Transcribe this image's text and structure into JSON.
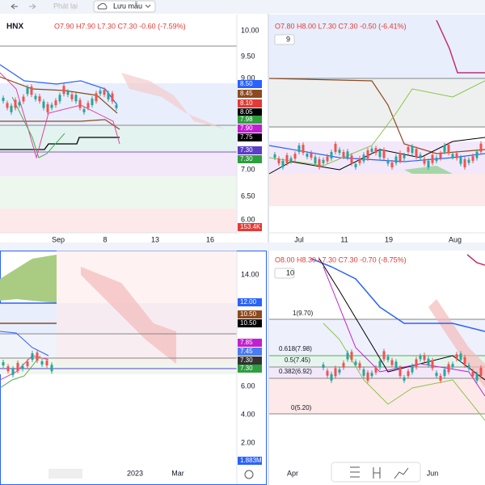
{
  "toolbar": {
    "save_label": "Lưu mẫu",
    "replay_label": "Phát lại"
  },
  "panes": [
    {
      "symbol": "HNX",
      "ohlc": "O7.90 H7.90 L7.30 C7.30 -0.60 (-7.59%)",
      "price_labels": [
        "10.00",
        "9.50",
        "9.00",
        "7.00",
        "6.50",
        "6.00"
      ],
      "badges": [
        {
          "text": "8.50",
          "color": "#2962ff"
        },
        {
          "text": "8.45",
          "color": "#8d4a1f"
        },
        {
          "text": "8.10",
          "color": "#e53935"
        },
        {
          "text": "8.05",
          "color": "#000000"
        },
        {
          "text": "7.98",
          "color": "#2e9e3e"
        },
        {
          "text": "7.90",
          "color": "#c020d0"
        },
        {
          "text": "7.75",
          "color": "#000000"
        },
        {
          "text": "7.30",
          "color": "#5b3fc8"
        },
        {
          "text": "7.30",
          "color": "#2e9e3e"
        },
        {
          "text": "153.4K",
          "color": "#e53935"
        }
      ],
      "time_labels": [
        "Sep",
        "8",
        "13",
        "16"
      ]
    },
    {
      "ohlc": "O7.80 H8.00 L7.30 C7.30 -0.50 (-6.41%)",
      "interval": "9",
      "time_labels": [
        "Jul",
        "11",
        "19",
        "Aug"
      ]
    },
    {
      "price_labels": [
        "14.00",
        "6.00",
        "4.00",
        "2.00"
      ],
      "badges": [
        {
          "text": "12.00",
          "color": "#2962ff"
        },
        {
          "text": "10.50",
          "color": "#8d4a1f"
        },
        {
          "text": "10.50",
          "color": "#000000"
        },
        {
          "text": "7.85",
          "color": "#c020d0"
        },
        {
          "text": "7.45",
          "color": "#4a7cf0"
        },
        {
          "text": "7.30",
          "color": "#333333"
        },
        {
          "text": "7.30",
          "color": "#2e9e3e"
        },
        {
          "text": "1.883M",
          "color": "#2962ff"
        }
      ],
      "time_labels": [
        "2023",
        "Mar"
      ]
    },
    {
      "ohlc": "O8.00 H8.30 L7.30 C7.30 -0.70 (-8.75%)",
      "interval": "10",
      "fib_labels": [
        "1(9.70)",
        "0.618(7.98)",
        "0.5(7.45)",
        "0.382(6.92)",
        "0(5.20)"
      ],
      "time_labels": [
        "Apr",
        "Jun"
      ]
    }
  ]
}
